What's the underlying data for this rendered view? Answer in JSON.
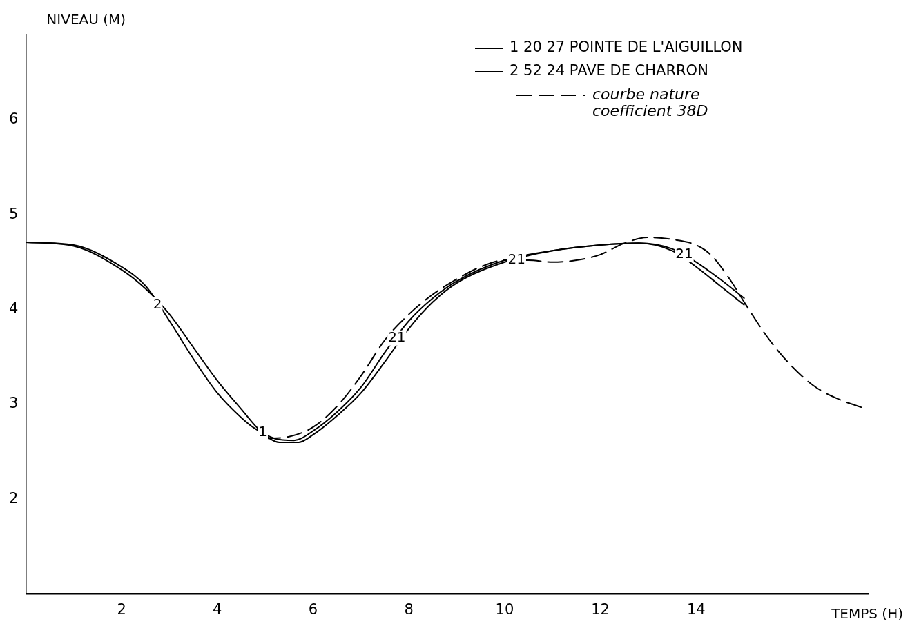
{
  "chart_data": {
    "type": "line",
    "xlabel": "TEMPS (H)",
    "ylabel": "NIVEAU (M)",
    "xlim": [
      0,
      17.6
    ],
    "ylim": [
      1,
      6.9
    ],
    "xticks": [
      2,
      4,
      6,
      8,
      10,
      12,
      14
    ],
    "yticks": [
      2,
      3,
      4,
      5,
      6
    ],
    "grid": false,
    "legend": "top right",
    "marker": "none",
    "series": [
      {
        "name": "1 20 27 POINTE DE L'AIGUILLON",
        "color": "#000000",
        "line_style": "solid",
        "x": [
          0,
          1,
          2,
          2.5,
          3,
          3.5,
          4,
          4.5,
          4.9,
          5.3,
          5.7,
          6,
          6.5,
          7,
          7.5,
          8,
          8.5,
          9,
          10,
          11,
          12,
          12.8,
          13.5,
          14,
          14.5,
          15
        ],
        "values": [
          4.71,
          4.67,
          4.42,
          4.22,
          3.95,
          3.6,
          3.25,
          2.95,
          2.72,
          2.6,
          2.6,
          2.68,
          2.88,
          3.12,
          3.45,
          3.8,
          4.08,
          4.28,
          4.5,
          4.62,
          4.68,
          4.7,
          4.62,
          4.45,
          4.25,
          4.05
        ]
      },
      {
        "name": "2 52 24 PAVE DE CHARRON",
        "color": "#000000",
        "line_style": "solid",
        "x": [
          0,
          1,
          2,
          2.5,
          3,
          3.5,
          4,
          4.5,
          4.8,
          5.2,
          5.6,
          6,
          6.5,
          7,
          7.5,
          8,
          8.5,
          9,
          10,
          11,
          12,
          12.8,
          13.5,
          14,
          14.5,
          15
        ],
        "values": [
          4.71,
          4.68,
          4.45,
          4.25,
          3.88,
          3.48,
          3.12,
          2.86,
          2.74,
          2.64,
          2.62,
          2.72,
          2.92,
          3.18,
          3.55,
          3.88,
          4.12,
          4.3,
          4.52,
          4.62,
          4.68,
          4.7,
          4.64,
          4.5,
          4.32,
          4.12
        ]
      },
      {
        "name": "courbe nature coefficient 38D",
        "color": "#000000",
        "line_style": "dashed",
        "x": [
          5.0,
          5.5,
          6,
          6.5,
          7,
          7.5,
          8,
          8.5,
          9,
          9.5,
          10,
          10.5,
          11,
          11.5,
          12,
          12.5,
          13,
          13.5,
          14,
          14.3,
          14.7,
          15,
          15.5,
          16,
          16.5,
          17,
          17.5
        ],
        "values": [
          2.64,
          2.66,
          2.76,
          2.98,
          3.3,
          3.68,
          3.95,
          4.16,
          4.32,
          4.45,
          4.52,
          4.52,
          4.5,
          4.52,
          4.58,
          4.7,
          4.76,
          4.74,
          4.68,
          4.58,
          4.32,
          4.08,
          3.7,
          3.4,
          3.18,
          3.05,
          2.96
        ]
      }
    ],
    "annotations": [
      {
        "text": "2",
        "x": 2.75,
        "y": 4.05
      },
      {
        "text": "1",
        "x": 4.95,
        "y": 2.7
      },
      {
        "text": "21",
        "x": 7.75,
        "y": 3.7
      },
      {
        "text": "21",
        "x": 10.25,
        "y": 4.52
      },
      {
        "text": "21",
        "x": 13.75,
        "y": 4.58
      }
    ]
  }
}
